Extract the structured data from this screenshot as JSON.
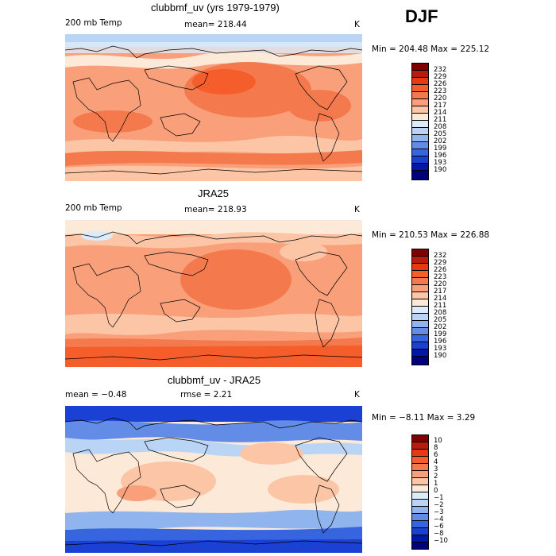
{
  "season": "DJF",
  "panels": [
    {
      "title": "clubbmf_uv (yrs 1979-1979)",
      "left_label": "200 mb Temp",
      "center_label": "mean= 218.44",
      "units": "K",
      "minmax": "Min = 204.48 Max = 225.12",
      "colorbar_levels": [
        "232",
        "229",
        "226",
        "223",
        "220",
        "217",
        "214",
        "211",
        "208",
        "205",
        "202",
        "199",
        "196",
        "193",
        "190"
      ],
      "colorbar_colors": [
        "#800000",
        "#b81c0c",
        "#e83a12",
        "#f55d2a",
        "#f47a4e",
        "#f9a07a",
        "#fcc6a6",
        "#fde9d8",
        "#dcebfa",
        "#b9d4f5",
        "#8fb4ee",
        "#628ce6",
        "#3665df",
        "#1a40d4",
        "#0018a8",
        "#00007a"
      ]
    },
    {
      "title": "JRA25",
      "left_label": "200 mb Temp",
      "center_label": "mean= 218.93",
      "units": "K",
      "minmax": "Min = 210.53 Max = 226.88",
      "colorbar_levels": [
        "232",
        "229",
        "226",
        "223",
        "220",
        "217",
        "214",
        "211",
        "208",
        "205",
        "202",
        "199",
        "196",
        "193",
        "190"
      ],
      "colorbar_colors": [
        "#800000",
        "#b81c0c",
        "#e83a12",
        "#f55d2a",
        "#f47a4e",
        "#f9a07a",
        "#fcc6a6",
        "#fde9d8",
        "#dcebfa",
        "#b9d4f5",
        "#8fb4ee",
        "#628ce6",
        "#3665df",
        "#1a40d4",
        "#0018a8",
        "#00007a"
      ]
    },
    {
      "title": "clubbmf_uv - JRA25",
      "left_label": "mean =  −0.48",
      "center_label": "rmse =   2.21",
      "units": "K",
      "minmax": "Min =  −8.11 Max =   3.29",
      "colorbar_levels": [
        "10",
        "8",
        "6",
        "4",
        "3",
        "2",
        "1",
        "0",
        "−1",
        "−2",
        "−3",
        "−4",
        "−6",
        "−8",
        "−10"
      ],
      "colorbar_colors": [
        "#800000",
        "#b81c0c",
        "#e83a12",
        "#f55d2a",
        "#f47a4e",
        "#f9a07a",
        "#fcc6a6",
        "#fde9d8",
        "#dcebfa",
        "#b9d4f5",
        "#8fb4ee",
        "#628ce6",
        "#3665df",
        "#1a40d4",
        "#0018a8",
        "#00007a"
      ]
    }
  ]
}
